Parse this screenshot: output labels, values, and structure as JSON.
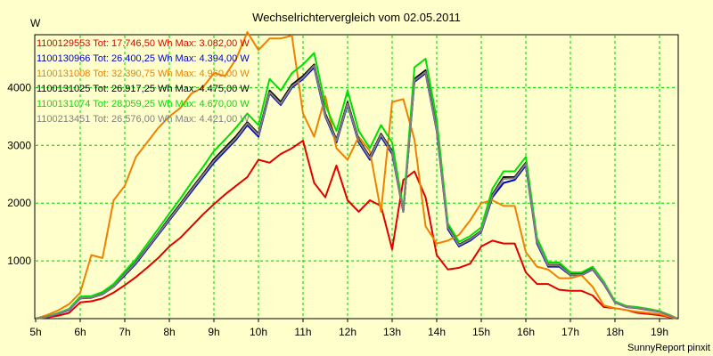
{
  "chart_data": {
    "type": "line",
    "title": "Wechselrichtervergleich vom 02.05.2011",
    "ylabel": "W",
    "xlabel": "",
    "footer": "SunnyReport pinxit",
    "ylim": [
      0,
      4900
    ],
    "xlim": [
      5,
      19.4
    ],
    "yticks": [
      1000,
      2000,
      3000,
      4000
    ],
    "xticks": [
      {
        "value": 5,
        "label": "5h"
      },
      {
        "value": 6,
        "label": "6h"
      },
      {
        "value": 7,
        "label": "7h"
      },
      {
        "value": 8,
        "label": "8h"
      },
      {
        "value": 9,
        "label": "9h"
      },
      {
        "value": 10,
        "label": "10h"
      },
      {
        "value": 11,
        "label": "11h"
      },
      {
        "value": 12,
        "label": "12h"
      },
      {
        "value": 13,
        "label": "13h"
      },
      {
        "value": 14,
        "label": "14h"
      },
      {
        "value": 15,
        "label": "15h"
      },
      {
        "value": 16,
        "label": "16h"
      },
      {
        "value": 17,
        "label": "17h"
      },
      {
        "value": 18,
        "label": "18h"
      },
      {
        "value": 19,
        "label": "19h"
      }
    ],
    "grid": true,
    "legend_position": "top-left",
    "x": [
      5.0,
      5.25,
      5.5,
      5.75,
      6.0,
      6.25,
      6.5,
      6.75,
      7.0,
      7.25,
      7.5,
      7.75,
      8.0,
      8.25,
      8.5,
      8.75,
      9.0,
      9.25,
      9.5,
      9.75,
      10.0,
      10.25,
      10.5,
      10.75,
      11.0,
      11.25,
      11.5,
      11.75,
      12.0,
      12.25,
      12.5,
      12.75,
      13.0,
      13.25,
      13.5,
      13.75,
      14.0,
      14.25,
      14.5,
      14.75,
      15.0,
      15.25,
      15.5,
      15.75,
      16.0,
      16.25,
      16.5,
      16.75,
      17.0,
      17.25,
      17.5,
      17.75,
      18.0,
      18.25,
      18.5,
      18.75,
      19.0,
      19.25,
      19.4
    ],
    "series": [
      {
        "name": "1100129553",
        "label": "1100129553 Tot: 17.746,50 Wh Max: 3.082,00 W",
        "color": "#e00000",
        "width": 2,
        "values": [
          0,
          20,
          50,
          100,
          280,
          300,
          350,
          450,
          580,
          720,
          880,
          1050,
          1250,
          1400,
          1600,
          1800,
          1980,
          2150,
          2300,
          2450,
          2750,
          2700,
          2850,
          2950,
          3080,
          2350,
          2100,
          2650,
          2050,
          1850,
          2050,
          1950,
          1200,
          2400,
          2550,
          2100,
          1100,
          850,
          880,
          950,
          1250,
          1350,
          1300,
          1300,
          800,
          600,
          600,
          500,
          480,
          480,
          400,
          200,
          180,
          150,
          100,
          80,
          60,
          20,
          0
        ]
      },
      {
        "name": "1100130966",
        "label": "1100130966 Tot: 26.400,25 Wh Max: 4.394,00 W",
        "color": "#0000cc",
        "width": 2,
        "values": [
          0,
          30,
          80,
          150,
          350,
          360,
          420,
          550,
          750,
          950,
          1200,
          1450,
          1700,
          1950,
          2200,
          2450,
          2700,
          2900,
          3100,
          3350,
          3150,
          3900,
          3700,
          4000,
          4150,
          4350,
          3500,
          3050,
          3700,
          3050,
          2750,
          3150,
          2850,
          1850,
          4100,
          4250,
          3250,
          1550,
          1250,
          1350,
          1500,
          2100,
          2350,
          2400,
          2650,
          1300,
          900,
          900,
          750,
          750,
          850,
          600,
          280,
          200,
          180,
          150,
          120,
          50,
          0
        ]
      },
      {
        "name": "1100131008",
        "label": "1100131008 Tot: 32.390,75 Wh Max: 4.960,00 W",
        "color": "#f08000",
        "width": 2,
        "values": [
          0,
          60,
          140,
          250,
          450,
          1100,
          1050,
          2050,
          2300,
          2800,
          3050,
          3300,
          3500,
          3650,
          3900,
          4000,
          4250,
          4200,
          4500,
          4960,
          4650,
          4850,
          4850,
          4900,
          3550,
          3150,
          3850,
          2950,
          2750,
          3150,
          2900,
          1850,
          3750,
          3800,
          3100,
          1600,
          1300,
          1350,
          1450,
          1700,
          2000,
          2050,
          1950,
          1950,
          1150,
          900,
          850,
          700,
          700,
          750,
          550,
          230,
          180,
          150,
          120,
          100,
          80,
          30,
          0
        ]
      },
      {
        "name": "1100131025",
        "label": "1100131025 Tot: 26.917,25 Wh Max: 4.475,00 W",
        "color": "#000000",
        "width": 2,
        "values": [
          0,
          30,
          90,
          160,
          360,
          370,
          430,
          560,
          780,
          980,
          1230,
          1480,
          1740,
          1990,
          2250,
          2500,
          2760,
          2960,
          3160,
          3400,
          3200,
          3950,
          3750,
          4050,
          4200,
          4400,
          3550,
          3100,
          3750,
          3100,
          2800,
          3200,
          2900,
          1850,
          4150,
          4300,
          3300,
          1600,
          1280,
          1380,
          1520,
          2150,
          2450,
          2450,
          2700,
          1350,
          930,
          930,
          770,
          770,
          870,
          620,
          290,
          210,
          190,
          160,
          120,
          50,
          0
        ]
      },
      {
        "name": "1100131074",
        "label": "1100131074 Tot: 28.059,25 Wh Max: 4.670,00 W",
        "color": "#00e000",
        "width": 2,
        "values": [
          0,
          35,
          95,
          170,
          380,
          390,
          460,
          600,
          820,
          1030,
          1290,
          1550,
          1820,
          2080,
          2360,
          2620,
          2900,
          3100,
          3310,
          3550,
          3350,
          4150,
          3950,
          4250,
          4400,
          4600,
          3700,
          3250,
          3950,
          3250,
          2950,
          3350,
          3050,
          1900,
          4350,
          4500,
          3450,
          1650,
          1330,
          1430,
          1580,
          2250,
          2550,
          2550,
          2800,
          1400,
          970,
          970,
          800,
          800,
          900,
          640,
          300,
          220,
          200,
          170,
          130,
          55,
          0
        ]
      },
      {
        "name": "1100213451",
        "label": "1100213451 Tot: 26.576,00 Wh Max: 4.421,00 W",
        "color": "#808080",
        "width": 2,
        "values": [
          0,
          30,
          85,
          155,
          355,
          365,
          425,
          555,
          770,
          970,
          1220,
          1470,
          1720,
          1970,
          2230,
          2480,
          2730,
          2930,
          3130,
          3380,
          3180,
          3920,
          3720,
          4020,
          4170,
          4380,
          3520,
          3080,
          3720,
          3080,
          2780,
          3180,
          2880,
          1850,
          4120,
          4270,
          3270,
          1580,
          1270,
          1370,
          1510,
          2130,
          2420,
          2430,
          2680,
          1330,
          920,
          920,
          760,
          760,
          860,
          610,
          285,
          205,
          185,
          155,
          120,
          50,
          0
        ]
      }
    ]
  }
}
